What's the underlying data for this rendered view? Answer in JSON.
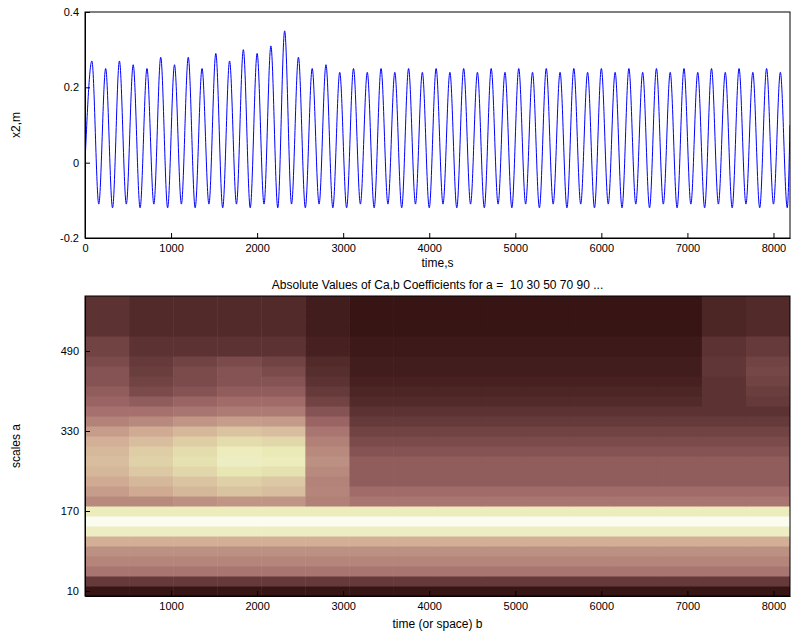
{
  "chart_data": [
    {
      "type": "line",
      "xlabel": "time,s",
      "ylabel": "x2,m",
      "xlim": [
        0,
        8192
      ],
      "ylim": [
        -0.2,
        0.4
      ],
      "xticks": [
        0,
        1000,
        2000,
        3000,
        4000,
        5000,
        6000,
        7000,
        8000
      ],
      "yticks": [
        -0.2,
        0,
        0.2,
        0.4
      ],
      "color": "#0000ff",
      "x": [
        0,
        80,
        160,
        240,
        320,
        400,
        480,
        560,
        640,
        720,
        800,
        880,
        960,
        1040,
        1120,
        1200,
        1280,
        1360,
        1440,
        1520,
        1600,
        1680,
        1760,
        1840,
        1920,
        2000,
        2080,
        2160,
        2240,
        2320,
        2400,
        2480,
        2560,
        2640,
        2720,
        2800,
        2880,
        2960,
        3040,
        3120,
        3200,
        3280,
        3360,
        3440,
        3520,
        3600,
        3680,
        3760,
        3840,
        3920,
        4000,
        4080,
        4160,
        4240,
        4320,
        4400,
        4480,
        4560,
        4640,
        4720,
        4800,
        4880,
        4960,
        5040,
        5120,
        5200,
        5280,
        5360,
        5440,
        5520,
        5600,
        5680,
        5760,
        5840,
        5920,
        6000,
        6080,
        6160,
        6240,
        6320,
        6400,
        6480,
        6560,
        6640,
        6720,
        6800,
        6880,
        6960,
        7040,
        7120,
        7200,
        7280,
        7360,
        7440,
        7520,
        7600,
        7680,
        7760,
        7840,
        7920,
        8000,
        8080,
        8160,
        8192
      ],
      "values": [
        0,
        0.27,
        -0.11,
        0.25,
        -0.12,
        0.27,
        -0.11,
        0.26,
        -0.12,
        0.25,
        -0.11,
        0.28,
        -0.12,
        0.26,
        -0.11,
        0.28,
        -0.12,
        0.25,
        -0.11,
        0.29,
        -0.12,
        0.27,
        -0.11,
        0.3,
        -0.12,
        0.29,
        -0.11,
        0.31,
        -0.12,
        0.35,
        -0.11,
        0.28,
        -0.12,
        0.25,
        -0.11,
        0.26,
        -0.12,
        0.24,
        -0.12,
        0.25,
        -0.11,
        0.24,
        -0.12,
        0.25,
        -0.11,
        0.24,
        -0.12,
        0.25,
        -0.11,
        0.24,
        -0.12,
        0.25,
        -0.11,
        0.24,
        -0.12,
        0.25,
        -0.11,
        0.24,
        -0.12,
        0.25,
        -0.11,
        0.24,
        -0.12,
        0.25,
        -0.11,
        0.24,
        -0.12,
        0.25,
        -0.11,
        0.24,
        -0.12,
        0.25,
        -0.11,
        0.24,
        -0.12,
        0.25,
        -0.11,
        0.24,
        -0.12,
        0.25,
        -0.11,
        0.24,
        -0.12,
        0.25,
        -0.11,
        0.24,
        -0.12,
        0.25,
        -0.11,
        0.24,
        -0.12,
        0.25,
        -0.11,
        0.24,
        -0.12,
        0.25,
        -0.11,
        0.24,
        -0.12,
        0.25,
        -0.11,
        0.24,
        -0.12,
        0.1
      ]
    },
    {
      "type": "heatmap",
      "title": "Absolute Values of Ca,b Coefficients for a =  10 30 50 70 90 ...",
      "xlabel": "time (or space) b",
      "ylabel": "scales a",
      "xlim": [
        0,
        8192
      ],
      "ylim": [
        0,
        600
      ],
      "xticks": [
        1000,
        2000,
        3000,
        4000,
        5000,
        6000,
        7000,
        8000
      ],
      "yticks": [
        10,
        170,
        330,
        490
      ],
      "zlim": [
        0,
        1
      ],
      "b_edges": [
        0,
        512,
        1024,
        1536,
        2048,
        2560,
        3072,
        3584,
        4096,
        4608,
        5120,
        5632,
        6144,
        6656,
        7168,
        7680,
        8192
      ],
      "scales": [
        10,
        30,
        50,
        70,
        90,
        110,
        130,
        150,
        170,
        190,
        210,
        230,
        250,
        270,
        290,
        310,
        330,
        350,
        370,
        390,
        410,
        430,
        450,
        470,
        490,
        510,
        530,
        550,
        570,
        590
      ],
      "cells": [
        [
          0.05,
          0.05,
          0.05,
          0.05,
          0.05,
          0.05,
          0.05,
          0.05,
          0.05,
          0.05,
          0.05,
          0.05,
          0.05,
          0.05,
          0.05,
          0.05
        ],
        [
          0.14,
          0.14,
          0.14,
          0.14,
          0.14,
          0.14,
          0.14,
          0.14,
          0.14,
          0.14,
          0.14,
          0.14,
          0.14,
          0.14,
          0.14,
          0.14
        ],
        [
          0.3,
          0.3,
          0.3,
          0.3,
          0.3,
          0.3,
          0.3,
          0.3,
          0.3,
          0.3,
          0.3,
          0.3,
          0.3,
          0.3,
          0.3,
          0.3
        ],
        [
          0.36,
          0.36,
          0.36,
          0.36,
          0.36,
          0.36,
          0.36,
          0.36,
          0.36,
          0.36,
          0.36,
          0.36,
          0.36,
          0.36,
          0.36,
          0.36
        ],
        [
          0.4,
          0.4,
          0.4,
          0.4,
          0.4,
          0.4,
          0.4,
          0.4,
          0.4,
          0.4,
          0.4,
          0.4,
          0.4,
          0.4,
          0.4,
          0.4
        ],
        [
          0.52,
          0.52,
          0.52,
          0.52,
          0.52,
          0.52,
          0.52,
          0.52,
          0.52,
          0.52,
          0.52,
          0.52,
          0.52,
          0.52,
          0.52,
          0.52
        ],
        [
          0.8,
          0.8,
          0.8,
          0.8,
          0.8,
          0.8,
          0.8,
          0.8,
          0.8,
          0.8,
          0.8,
          0.8,
          0.8,
          0.8,
          0.8,
          0.8
        ],
        [
          0.95,
          0.95,
          0.95,
          0.95,
          0.95,
          0.95,
          0.95,
          0.95,
          0.95,
          0.95,
          0.95,
          0.95,
          0.95,
          0.95,
          0.95,
          0.95
        ],
        [
          0.78,
          0.78,
          0.78,
          0.78,
          0.78,
          0.78,
          0.78,
          0.78,
          0.78,
          0.78,
          0.78,
          0.78,
          0.78,
          0.78,
          0.78,
          0.78
        ],
        [
          0.38,
          0.38,
          0.4,
          0.42,
          0.42,
          0.34,
          0.3,
          0.3,
          0.3,
          0.3,
          0.3,
          0.3,
          0.3,
          0.3,
          0.3,
          0.3
        ],
        [
          0.45,
          0.5,
          0.55,
          0.6,
          0.58,
          0.36,
          0.26,
          0.26,
          0.26,
          0.26,
          0.26,
          0.26,
          0.26,
          0.26,
          0.26,
          0.26
        ],
        [
          0.5,
          0.55,
          0.6,
          0.65,
          0.62,
          0.35,
          0.22,
          0.22,
          0.22,
          0.22,
          0.22,
          0.22,
          0.22,
          0.22,
          0.22,
          0.22
        ],
        [
          0.55,
          0.62,
          0.68,
          0.74,
          0.72,
          0.38,
          0.22,
          0.22,
          0.22,
          0.22,
          0.22,
          0.22,
          0.22,
          0.22,
          0.22,
          0.22
        ],
        [
          0.58,
          0.66,
          0.72,
          0.8,
          0.78,
          0.4,
          0.22,
          0.22,
          0.22,
          0.22,
          0.22,
          0.22,
          0.22,
          0.22,
          0.22,
          0.22
        ],
        [
          0.56,
          0.64,
          0.7,
          0.78,
          0.76,
          0.38,
          0.2,
          0.2,
          0.2,
          0.2,
          0.2,
          0.2,
          0.2,
          0.2,
          0.2,
          0.2
        ],
        [
          0.52,
          0.58,
          0.64,
          0.7,
          0.68,
          0.34,
          0.18,
          0.18,
          0.18,
          0.18,
          0.18,
          0.18,
          0.18,
          0.18,
          0.18,
          0.18
        ],
        [
          0.45,
          0.5,
          0.55,
          0.6,
          0.58,
          0.3,
          0.16,
          0.16,
          0.16,
          0.16,
          0.16,
          0.16,
          0.16,
          0.16,
          0.16,
          0.16
        ],
        [
          0.35,
          0.38,
          0.42,
          0.45,
          0.44,
          0.24,
          0.14,
          0.14,
          0.14,
          0.14,
          0.14,
          0.14,
          0.14,
          0.14,
          0.14,
          0.14
        ],
        [
          0.28,
          0.28,
          0.3,
          0.32,
          0.32,
          0.2,
          0.12,
          0.12,
          0.12,
          0.12,
          0.12,
          0.12,
          0.12,
          0.12,
          0.12,
          0.12
        ],
        [
          0.24,
          0.22,
          0.24,
          0.26,
          0.26,
          0.16,
          0.1,
          0.1,
          0.1,
          0.1,
          0.1,
          0.1,
          0.1,
          0.1,
          0.12,
          0.14
        ],
        [
          0.22,
          0.18,
          0.2,
          0.22,
          0.22,
          0.14,
          0.09,
          0.09,
          0.09,
          0.09,
          0.09,
          0.09,
          0.09,
          0.09,
          0.12,
          0.15
        ],
        [
          0.2,
          0.16,
          0.18,
          0.2,
          0.2,
          0.12,
          0.08,
          0.08,
          0.08,
          0.08,
          0.08,
          0.08,
          0.08,
          0.08,
          0.12,
          0.16
        ],
        [
          0.2,
          0.15,
          0.18,
          0.2,
          0.18,
          0.11,
          0.07,
          0.07,
          0.07,
          0.07,
          0.07,
          0.07,
          0.07,
          0.07,
          0.13,
          0.17
        ],
        [
          0.18,
          0.14,
          0.16,
          0.18,
          0.16,
          0.1,
          0.07,
          0.07,
          0.07,
          0.07,
          0.07,
          0.07,
          0.07,
          0.07,
          0.13,
          0.16
        ],
        [
          0.16,
          0.12,
          0.12,
          0.12,
          0.12,
          0.08,
          0.06,
          0.06,
          0.06,
          0.06,
          0.06,
          0.06,
          0.06,
          0.06,
          0.12,
          0.14
        ],
        [
          0.16,
          0.12,
          0.12,
          0.12,
          0.12,
          0.08,
          0.06,
          0.06,
          0.06,
          0.06,
          0.06,
          0.06,
          0.06,
          0.06,
          0.12,
          0.14
        ],
        [
          0.12,
          0.1,
          0.1,
          0.1,
          0.1,
          0.07,
          0.05,
          0.05,
          0.05,
          0.05,
          0.05,
          0.05,
          0.05,
          0.05,
          0.09,
          0.1
        ],
        [
          0.12,
          0.1,
          0.1,
          0.1,
          0.1,
          0.07,
          0.05,
          0.05,
          0.05,
          0.05,
          0.05,
          0.05,
          0.05,
          0.05,
          0.09,
          0.1
        ],
        [
          0.12,
          0.1,
          0.1,
          0.1,
          0.1,
          0.07,
          0.05,
          0.05,
          0.05,
          0.05,
          0.05,
          0.05,
          0.05,
          0.05,
          0.09,
          0.1
        ],
        [
          0.12,
          0.1,
          0.1,
          0.1,
          0.1,
          0.07,
          0.05,
          0.05,
          0.05,
          0.05,
          0.05,
          0.05,
          0.05,
          0.05,
          0.09,
          0.1
        ]
      ]
    }
  ]
}
